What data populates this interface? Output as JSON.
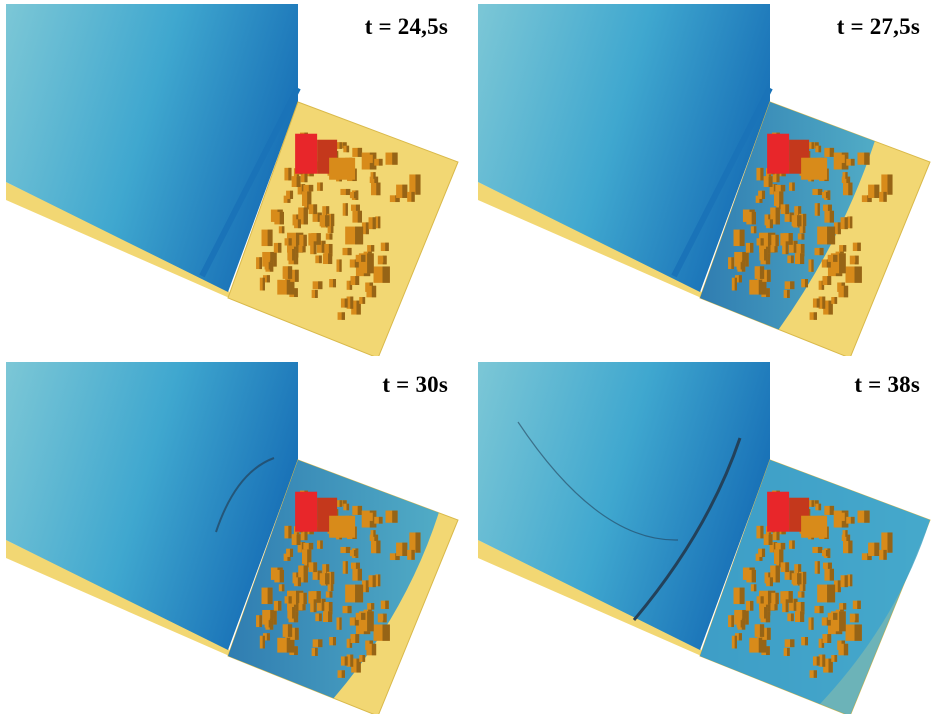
{
  "panels": [
    {
      "time_label": "t = 24,5s",
      "flood_extent": 0.0
    },
    {
      "time_label": "t = 27,5s",
      "flood_extent": 0.45
    },
    {
      "time_label": "t = 30s",
      "flood_extent": 0.7
    },
    {
      "time_label": "t = 38s",
      "flood_extent": 1.0
    }
  ],
  "colors": {
    "water_light": "#7cc7d6",
    "water_mid": "#3fa7cf",
    "water_dark": "#1a73b8",
    "sand": "#f2d773",
    "sand_dark": "#d9b94a",
    "building": "#d88b1a",
    "building_dark": "#7a5416",
    "tower": "#e8262a",
    "wave_front": "#23415a"
  }
}
